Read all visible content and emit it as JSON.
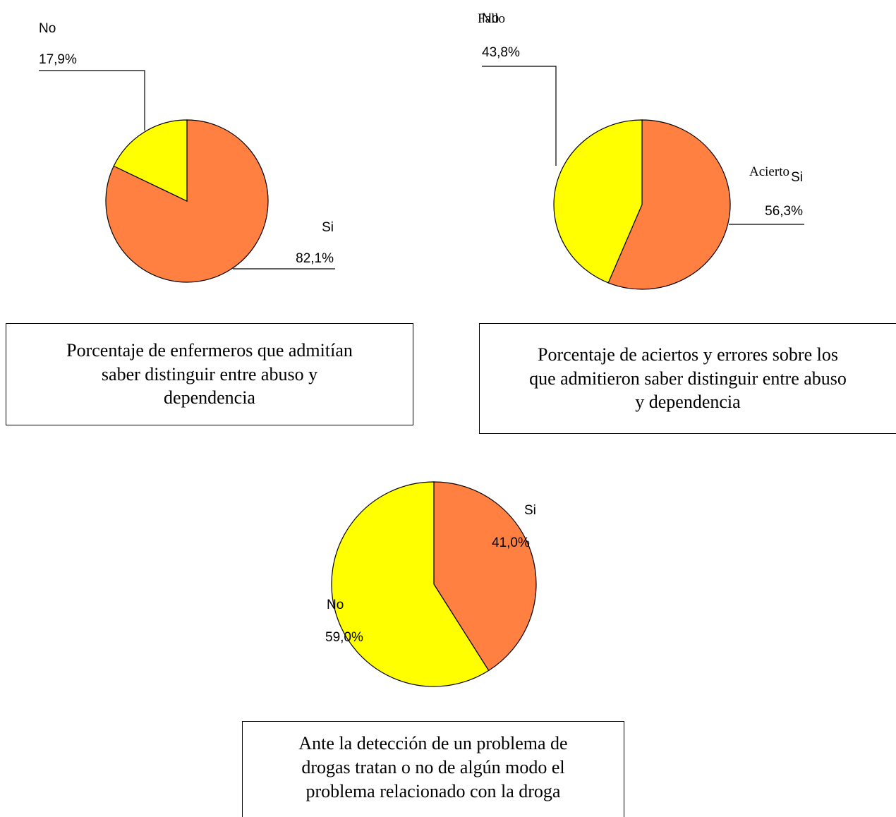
{
  "colors": {
    "si": "#FF8040",
    "no": "#FFFF00",
    "outline": "#000000"
  },
  "chart_data": [
    {
      "type": "pie",
      "slices": [
        {
          "label": "Si",
          "value": 82.1,
          "display": "82,1%",
          "color": "#FF8040"
        },
        {
          "label": "No",
          "value": 17.9,
          "display": "17,9%",
          "color": "#FFFF00"
        }
      ],
      "caption_lines": [
        "Porcentaje de enfermeros que admitían",
        "saber distinguir entre abuso y",
        "dependencia"
      ]
    },
    {
      "type": "pie",
      "slices": [
        {
          "label": "Si",
          "value": 56.3,
          "display": "56,3%",
          "color": "#FF8040",
          "overlay_label": "Acierto"
        },
        {
          "label": "No",
          "value": 43.8,
          "display": "43,8%",
          "color": "#FFFF00",
          "overlay_label": "Fallo"
        }
      ],
      "caption_lines": [
        "Porcentaje de aciertos y errores sobre los",
        "que admitieron saber distinguir entre abuso",
        "y dependencia"
      ]
    },
    {
      "type": "pie",
      "slices": [
        {
          "label": "Si",
          "value": 41.0,
          "display": "41,0%",
          "color": "#FF8040"
        },
        {
          "label": "No",
          "value": 59.0,
          "display": "59,0%",
          "color": "#FFFF00"
        }
      ],
      "caption_lines": [
        "Ante la detección de un problema de",
        "drogas tratan o no de algún modo el",
        "problema relacionado con la droga"
      ]
    }
  ]
}
